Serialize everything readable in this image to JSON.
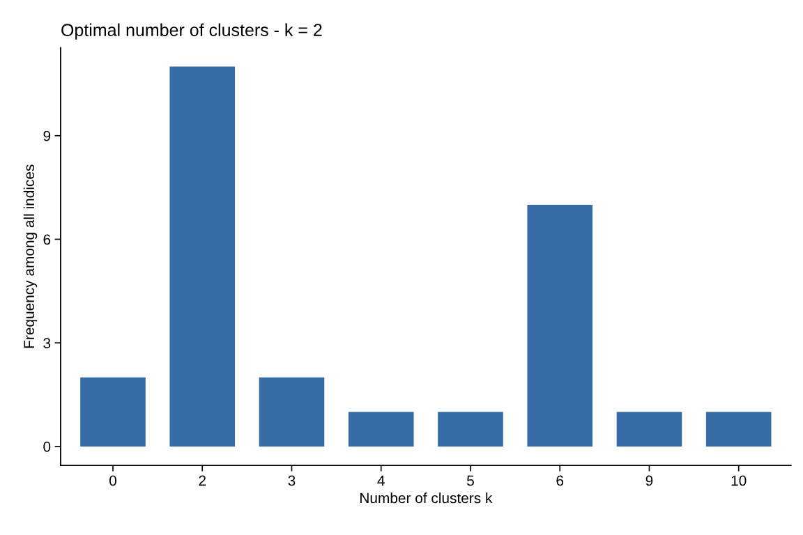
{
  "chart_data": {
    "type": "bar",
    "title": "Optimal number of clusters - k = 2",
    "xlabel": "Number of clusters k",
    "ylabel": "Frequency among all indices",
    "categories": [
      "0",
      "2",
      "3",
      "4",
      "5",
      "6",
      "9",
      "10"
    ],
    "values": [
      2,
      11,
      2,
      1,
      1,
      7,
      1,
      1
    ],
    "color": "#386ca6",
    "ylim": [
      -0.55,
      11.55
    ],
    "yticks": [
      0,
      3,
      6,
      9
    ],
    "grid": false
  }
}
